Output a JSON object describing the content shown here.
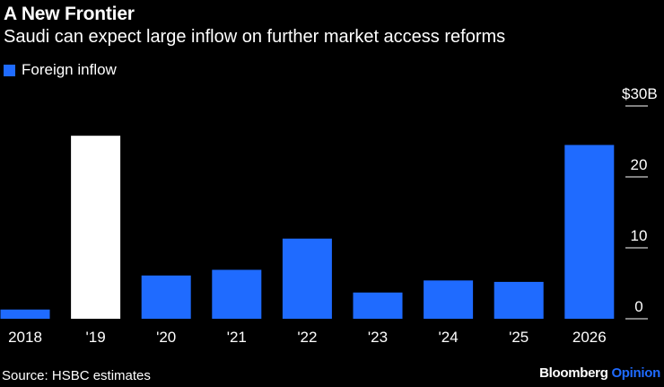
{
  "header": {
    "title": "A New Frontier",
    "subtitle": "Saudi can expect large inflow on further market access reforms"
  },
  "footer": {
    "source": "Source: HSBC estimates",
    "brand_main": "Bloomberg",
    "brand_accent": "Opinion"
  },
  "colors": {
    "background": "#000000",
    "bar": "#1f6bff",
    "highlight_bar": "#ffffff",
    "text": "#ffffff"
  },
  "chart_data": {
    "type": "bar",
    "title": "A New Frontier",
    "subtitle": "Saudi can expect large inflow on further market access reforms",
    "legend": [
      "Foreign inflow"
    ],
    "legend_placement": "top-left",
    "categories": [
      "2018",
      "'19",
      "'20",
      "'21",
      "'22",
      "'23",
      "'24",
      "'25",
      "2026"
    ],
    "series": [
      {
        "name": "Foreign inflow",
        "values": [
          1.3,
          25.8,
          6.1,
          6.9,
          11.3,
          3.7,
          5.4,
          5.2,
          24.5
        ],
        "highlight_index": 1
      }
    ],
    "ylim": [
      0,
      30
    ],
    "yticks": [
      {
        "value": 0,
        "label": "0"
      },
      {
        "value": 10,
        "label": "10"
      },
      {
        "value": 20,
        "label": "20"
      },
      {
        "value": 30,
        "label": "$30B"
      }
    ],
    "yaxis_position": "right",
    "xlabel": "",
    "ylabel": ""
  }
}
